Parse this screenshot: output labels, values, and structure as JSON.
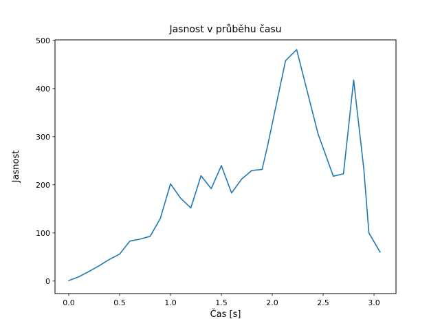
{
  "figure": {
    "background": "#ffffff",
    "plot_border_color": "#000000"
  },
  "chart_data": {
    "type": "line",
    "title": "Jasnost v průběhu času",
    "xlabel": "Čas [s]",
    "ylabel": "Jasnost",
    "x": [
      0.0,
      0.1,
      0.2,
      0.3,
      0.4,
      0.5,
      0.6,
      0.7,
      0.8,
      0.9,
      1.0,
      1.1,
      1.2,
      1.3,
      1.4,
      1.5,
      1.6,
      1.7,
      1.8,
      1.9,
      1.95,
      2.13,
      2.24,
      2.45,
      2.6,
      2.7,
      2.8,
      2.9,
      2.95,
      3.06
    ],
    "y": [
      1,
      9,
      20,
      32,
      45,
      56,
      83,
      87,
      93,
      130,
      202,
      172,
      152,
      219,
      192,
      240,
      183,
      212,
      230,
      232,
      277,
      458,
      481,
      306,
      218,
      223,
      418,
      233,
      100,
      60
    ],
    "xticks": [
      0.0,
      0.5,
      1.0,
      1.5,
      2.0,
      2.5,
      3.0
    ],
    "yticks": [
      0,
      100,
      200,
      300,
      400,
      500
    ],
    "xlim": [
      -0.135,
      3.216
    ],
    "ylim": [
      -26,
      501.3
    ],
    "grid": false,
    "legend": null,
    "line_color": "#1f77b4",
    "line_width": 1.6
  }
}
